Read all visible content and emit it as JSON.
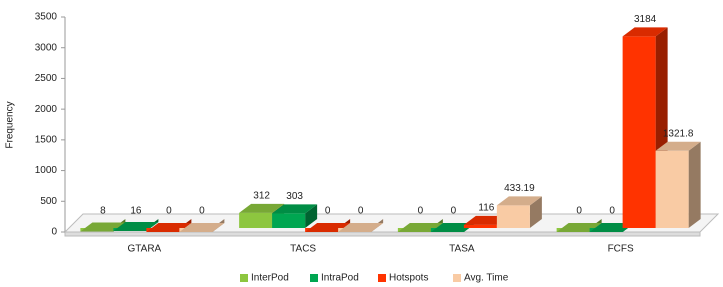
{
  "chart_data": {
    "type": "bar3d",
    "y_label": "Frequency",
    "categories": [
      "GTARA",
      "TACS",
      "TASA",
      "FCFS"
    ],
    "series": [
      {
        "name": "InterPod",
        "color": "#8dc63f",
        "values": [
          8,
          312,
          0,
          0
        ]
      },
      {
        "name": "IntraPod",
        "color": "#00a651",
        "values": [
          16,
          303,
          0,
          0
        ]
      },
      {
        "name": "Hotspots",
        "color": "#ff3300",
        "values": [
          0,
          0,
          116,
          3184
        ]
      },
      {
        "name": "Avg. Time",
        "color": "#f9cba4",
        "values": [
          0,
          0,
          433.19,
          1321.8
        ]
      }
    ],
    "ylim": [
      0,
      3500
    ],
    "yticks": [
      0,
      500,
      1000,
      1500,
      2000,
      2500,
      3000,
      3500
    ],
    "legend": "bottom"
  }
}
